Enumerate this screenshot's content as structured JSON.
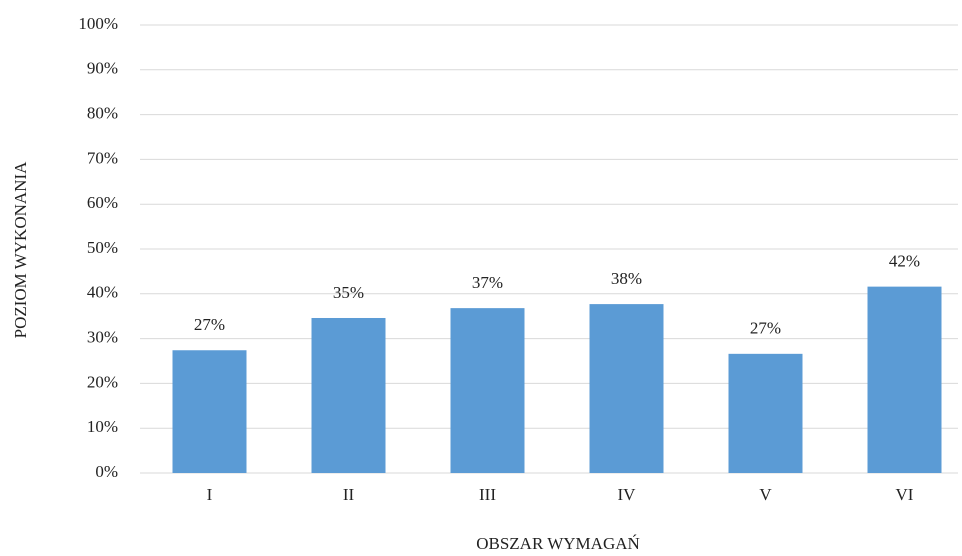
{
  "chart_data": {
    "type": "bar",
    "x_label": "OBSZAR WYMAGAŃ",
    "y_label": "POZIOM WYKONANIA",
    "categories": [
      "I",
      "II",
      "III",
      "IV",
      "V",
      "VI"
    ],
    "values": [
      27.4,
      34.6,
      36.8,
      37.7,
      26.6,
      41.6
    ],
    "value_labels": [
      "27%",
      "35%",
      "37%",
      "38%",
      "27%",
      "42%"
    ],
    "color": "#5b9bd5",
    "ylim": [
      0,
      100
    ],
    "yticks": [
      {
        "value": 0,
        "label": "0%"
      },
      {
        "value": 10,
        "label": "10%"
      },
      {
        "value": 20,
        "label": "20%"
      },
      {
        "value": 30,
        "label": "30%"
      },
      {
        "value": 40,
        "label": "40%"
      },
      {
        "value": 50,
        "label": "50%"
      },
      {
        "value": 60,
        "label": "60%"
      },
      {
        "value": 70,
        "label": "70%"
      },
      {
        "value": 80,
        "label": "80%"
      },
      {
        "value": 90,
        "label": "90%"
      },
      {
        "value": 100,
        "label": "100%"
      }
    ],
    "grid": true
  }
}
